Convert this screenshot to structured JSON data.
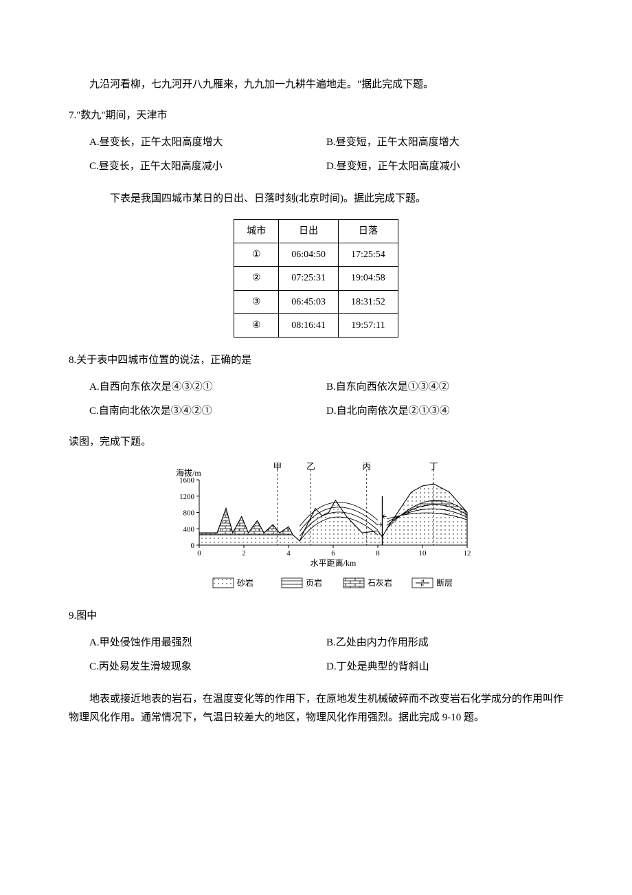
{
  "intro_continued": "九沿河看柳，七九河开八九雁来，九九加一九耕牛遍地走。\"据此完成下题。",
  "q7": {
    "stem": "7.\"数九\"期间，天津市",
    "choices": {
      "A": "A.昼变长，正午太阳高度增大",
      "B": "B.昼变短，正午太阳高度增大",
      "C": "C.昼变长，正午太阳高度减小",
      "D": "D.昼变短，正午太阳高度减小"
    }
  },
  "q8_intro": "下表是我国四城市某日的日出、日落时刻(北京时间)。据此完成下题。",
  "table": {
    "headers": {
      "city": "城市",
      "sunrise": "日出",
      "sunset": "日落"
    },
    "rows": [
      {
        "city": "①",
        "sunrise": "06:04:50",
        "sunset": "17:25:54"
      },
      {
        "city": "②",
        "sunrise": "07:25:31",
        "sunset": "19:04:58"
      },
      {
        "city": "③",
        "sunrise": "06:45:03",
        "sunset": "18:31:52"
      },
      {
        "city": "④",
        "sunrise": "08:16:41",
        "sunset": "19:57:11"
      }
    ]
  },
  "q8": {
    "stem": "8.关于表中四城市位置的说法，正确的是",
    "choices": {
      "A": "A.自西向东依次是④③②①",
      "B": "B.自东向西依次是①③④②",
      "C": "C.自南向北依次是③④②①",
      "D": "D.自北向南依次是②①③④"
    }
  },
  "figure_intro": "读图，完成下题。",
  "cross_section": {
    "xlabel": "水平距离/km",
    "ylabel": "海拔/m",
    "x_ticks": [
      0,
      2,
      4,
      6,
      8,
      10,
      12
    ],
    "y_ticks": [
      0,
      400,
      800,
      1200,
      1600
    ],
    "markers": [
      "甲",
      "乙",
      "丙",
      "丁"
    ],
    "marker_x": [
      3.5,
      5.0,
      7.5,
      10.5
    ],
    "legend": {
      "sand": "砂岩",
      "shale": "页岩",
      "limestone": "石灰岩",
      "fault": "断层"
    },
    "colors": {
      "line": "#000000",
      "bg": "#ffffff"
    }
  },
  "q9": {
    "stem": "9.图中",
    "choices": {
      "A": "A.甲处侵蚀作用最强烈",
      "B": "B.乙处由内力作用形成",
      "C": "C.丙处易发生滑坡现象",
      "D": "D.丁处是典型的背斜山"
    }
  },
  "q10_intro": "地表或接近地表的岩石，在温度变化等的作用下，在原地发生机械破碎而不改变岩石化学成分的作用叫作物理风化作用。通常情况下，气温日较差大的地区，物理风化作用强烈。据此完成 9-10 题。"
}
